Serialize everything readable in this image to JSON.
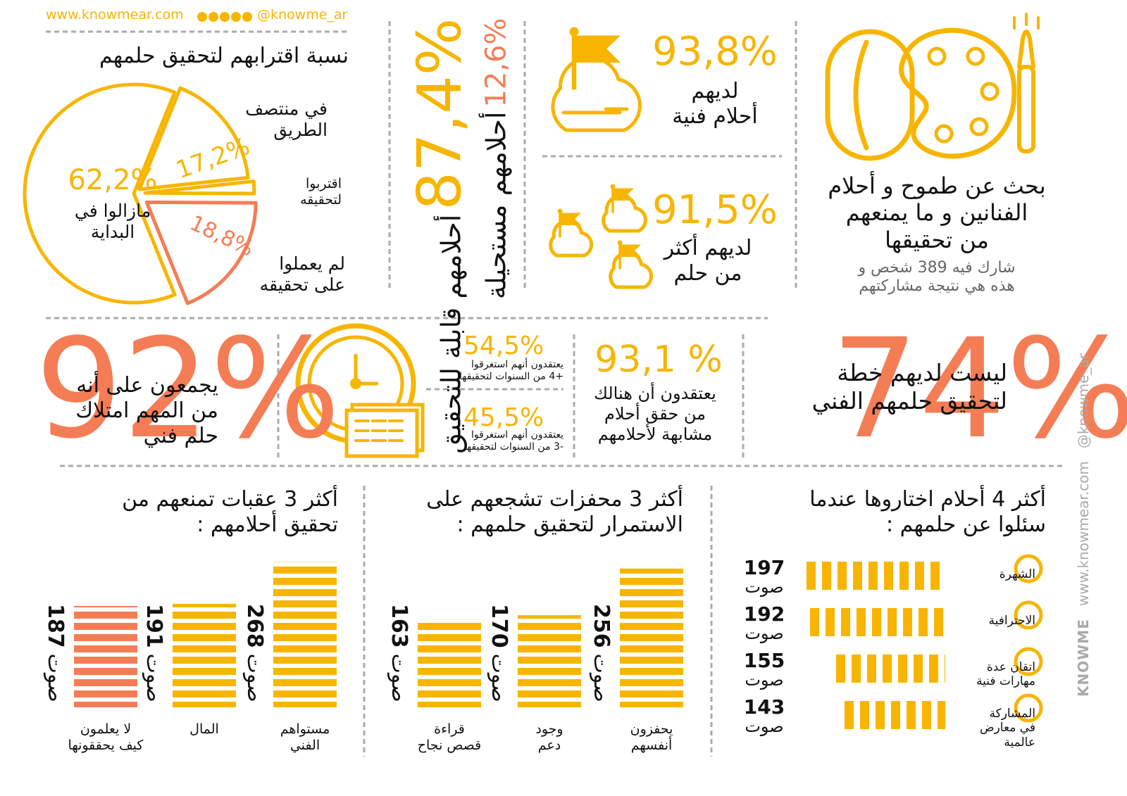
{
  "header": {
    "website": "www.knowmear.com",
    "handle": "@knowme_ar"
  },
  "intro": {
    "title": "بحث عن طموح و أحلام\nالفنانين و ما يمنعهم\nمن تحقيقها",
    "subtitle": "شارك فيه 389 شخص و\nهذه هي نتيجة مشاركتهم"
  },
  "proximity": {
    "title": "نسبة اقترابهم لتحقيق حلمهم",
    "slices": [
      {
        "name": "مازالوا في\nالبداية",
        "value": 62.2,
        "label": "62,2%",
        "color": "#f7b500"
      },
      {
        "name": "في منتصف\nالطريق",
        "value": 17.2,
        "label": "17,2%",
        "color": "#f7b500"
      },
      {
        "name": "اقتربوا\nلتحقيقه",
        "value": 1.8,
        "label": null,
        "color": "#f7b500"
      },
      {
        "name": "لم يعملوا\nعلى تحقيقه",
        "value": 18.8,
        "label": "18,8%",
        "color": "#f47d55"
      }
    ]
  },
  "feasibility": [
    {
      "value": "87,4%",
      "text": "أحلامهم قابلة للتحقيق"
    },
    {
      "value": "12,6%",
      "text": "أحلامهم مستحيلة"
    }
  ],
  "stats": {
    "artistic_dreams": {
      "value": "93,8%",
      "text": "لديهم\nأحلام فنية"
    },
    "multiple_dreams": {
      "value": "91,5%",
      "text": "لديهم أكثر\nمن حلم"
    },
    "important": {
      "value": "92%",
      "text": "يجمعون على أنه\nمن المهم امتلاك\nحلم فني"
    },
    "years_more": {
      "value": "54,5%",
      "text": "يعتقدون أنهم استغرقوا\n+4 من السنوات لتحقيقها"
    },
    "years_less": {
      "value": "45,5%",
      "text": "يعتقدون أنهم استغرقوا\n-3 من السنوات لتحقيقها"
    },
    "similar": {
      "value": "93,1 %",
      "text": "يعتقدون أن هنالك\nمن حقق أحلام\nمشابهة لأحلامهم"
    },
    "no_plan": {
      "value": "74%",
      "text": "ليست لديهم خطة\nلتحقيق حلمهم الفني"
    }
  },
  "vote_unit": "صوت",
  "polls": {
    "obstacles": {
      "title": "أكثر 3 عقبات تمنعهم من\nتحقيق أحلامهم :",
      "items": [
        {
          "label": "مستواهم\nالفني",
          "votes": 268,
          "color": "#f7b500"
        },
        {
          "label": "المال",
          "votes": 191,
          "color": "#f7b500"
        },
        {
          "label": "لا يعلمون\nكيف يحققونها",
          "votes": 187,
          "color": "#f47d55"
        }
      ]
    },
    "motivators": {
      "title": "أكثر 3 محفزات تشجعهم على\nالاستمرار لتحقيق حلمهم :",
      "items": [
        {
          "label": "يحفزون\nأنفسهم",
          "votes": 256,
          "color": "#f7b500"
        },
        {
          "label": "وجود\nدعم",
          "votes": 170,
          "color": "#f7b500"
        },
        {
          "label": "قراءة\nقصص نجاح",
          "votes": 163,
          "color": "#f7b500"
        }
      ]
    },
    "dreams": {
      "title": "أكثر 4 أحلام اختاروها عندما\nسئلوا عن حلمهم :",
      "items": [
        {
          "label": "الشهرة",
          "votes": 197,
          "color": "#f7b500"
        },
        {
          "label": "الاحترافية",
          "votes": 192,
          "color": "#f7b500"
        },
        {
          "label": "اتقان عدة\nمهارات فنية",
          "votes": 155,
          "color": "#f7b500"
        },
        {
          "label": "المشاركة\nفي معارض\nعالمية",
          "votes": 143,
          "color": "#f7b500"
        }
      ]
    }
  },
  "brand": "KNOWME"
}
